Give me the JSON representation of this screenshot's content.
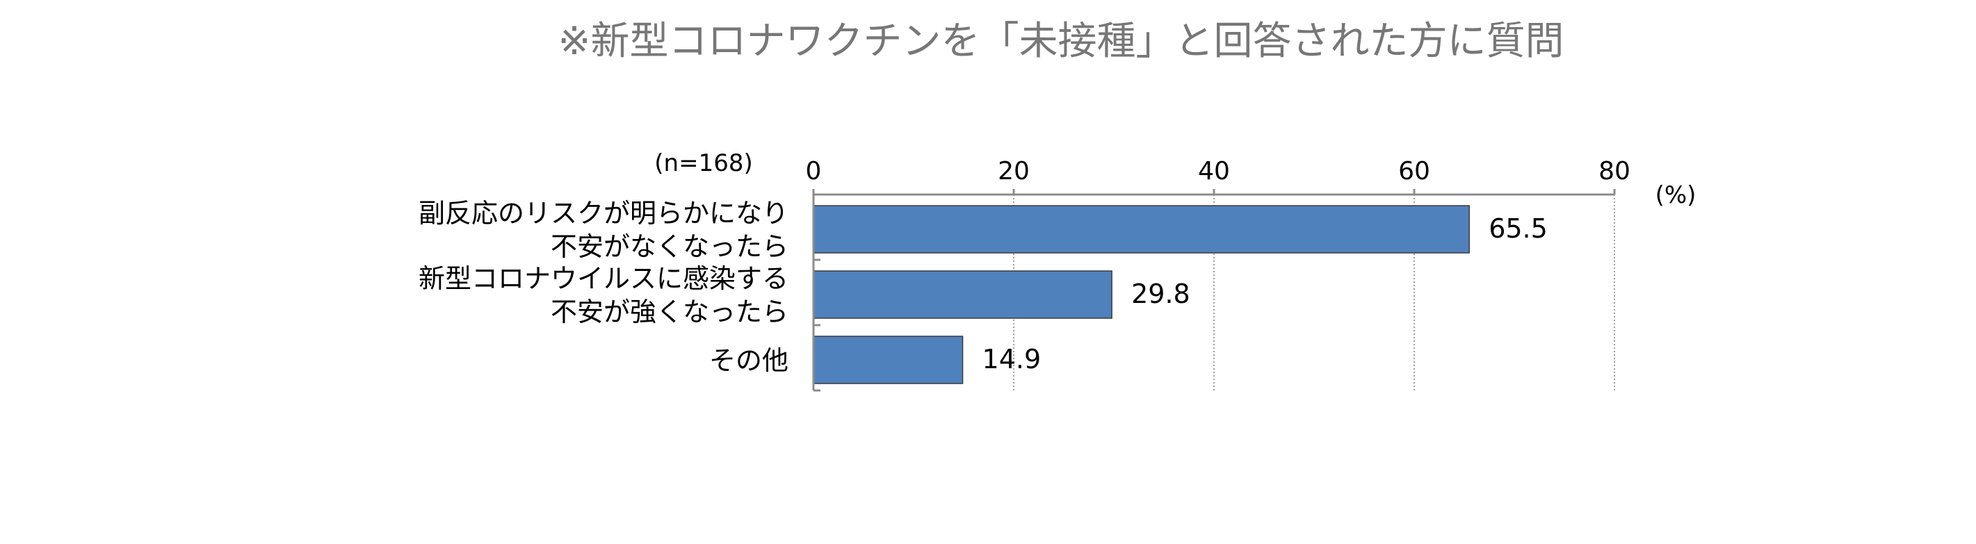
{
  "chart_data": {
    "type": "bar",
    "orientation": "horizontal",
    "title": "※新型コロナワクチンを「未接種」と回答された方に質問",
    "sample_note": "(n=168)",
    "unit": "(%)",
    "categories": [
      [
        "副反応のリスクが明らかになり",
        "不安がなくなったら"
      ],
      [
        "新型コロナウイルスに感染する",
        "不安が強くなったら"
      ],
      [
        "その他"
      ]
    ],
    "values": [
      65.5,
      29.8,
      14.9
    ],
    "value_labels": [
      "65.5",
      "29.8",
      "14.9"
    ],
    "xlim": [
      0,
      80
    ],
    "ticks": [
      0,
      20,
      40,
      60,
      80
    ],
    "tick_labels": [
      "0",
      "20",
      "40",
      "60",
      "80"
    ],
    "axis_position": "top",
    "grid": true,
    "colors": {
      "bar": "#4f81bd",
      "bar_border": "#3b3b3b",
      "title": "#777777",
      "axis": "#8c8c8c",
      "grid": "#808080",
      "text": "#000000"
    }
  }
}
